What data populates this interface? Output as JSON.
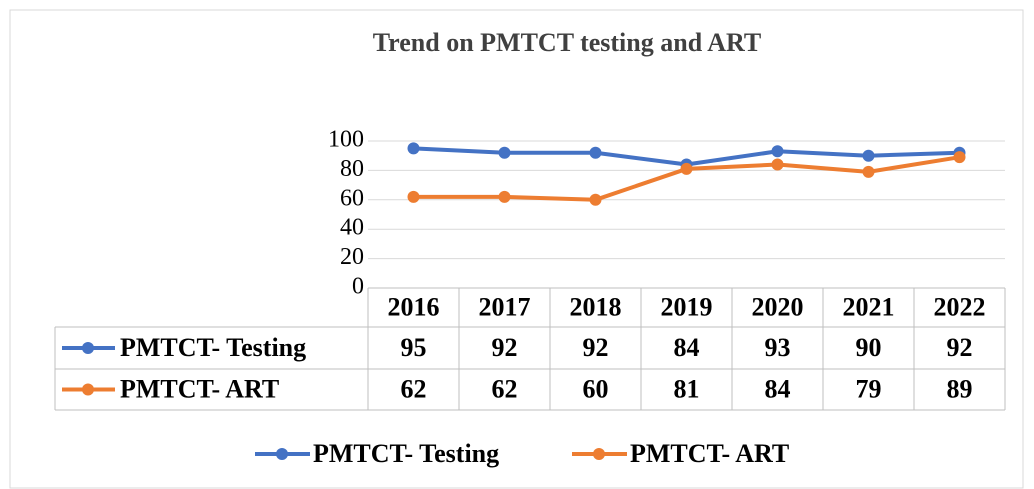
{
  "chart_data": {
    "type": "line",
    "title": "Trend on PMTCT testing and ART",
    "categories": [
      "2016",
      "2017",
      "2018",
      "2019",
      "2020",
      "2021",
      "2022"
    ],
    "series": [
      {
        "name": "PMTCT- Testing",
        "color": "#4472c4",
        "values": [
          95,
          92,
          92,
          84,
          93,
          90,
          92
        ]
      },
      {
        "name": "PMTCT- ART",
        "color": "#ed7d31",
        "values": [
          62,
          62,
          60,
          81,
          84,
          79,
          89
        ]
      }
    ],
    "ylim": [
      0,
      100
    ],
    "yticks": [
      0,
      20,
      40,
      60,
      80,
      100
    ],
    "grid": true,
    "legend": "bottom",
    "data_table": true
  }
}
